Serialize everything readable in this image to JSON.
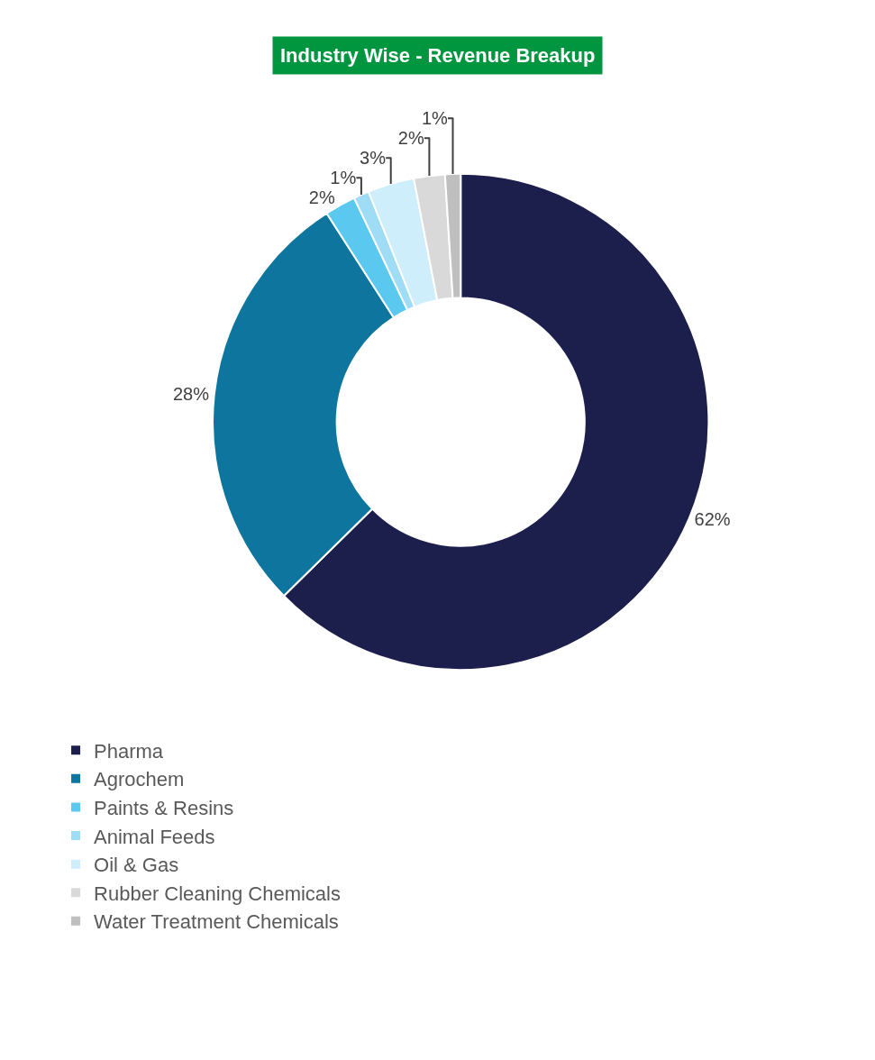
{
  "chart_data": {
    "type": "donut",
    "title": "Industry Wise - Revenue Breakup",
    "categories": [
      "Pharma",
      "Agrochem",
      "Paints & Resins",
      "Animal Feeds",
      "Oil & Gas",
      "Rubber Cleaning Chemicals",
      "Water Treatment Chemicals"
    ],
    "values": [
      62,
      28,
      2,
      1,
      3,
      2,
      1
    ],
    "value_labels": [
      "62%",
      "28%",
      "2%",
      "1%",
      "3%",
      "2%",
      "1%"
    ],
    "colors": [
      "#1c1f4c",
      "#0e769e",
      "#5bc8ef",
      "#9fdcf5",
      "#cdeefa",
      "#d9d9d9",
      "#bfbfbf"
    ],
    "legend": "bottom"
  }
}
